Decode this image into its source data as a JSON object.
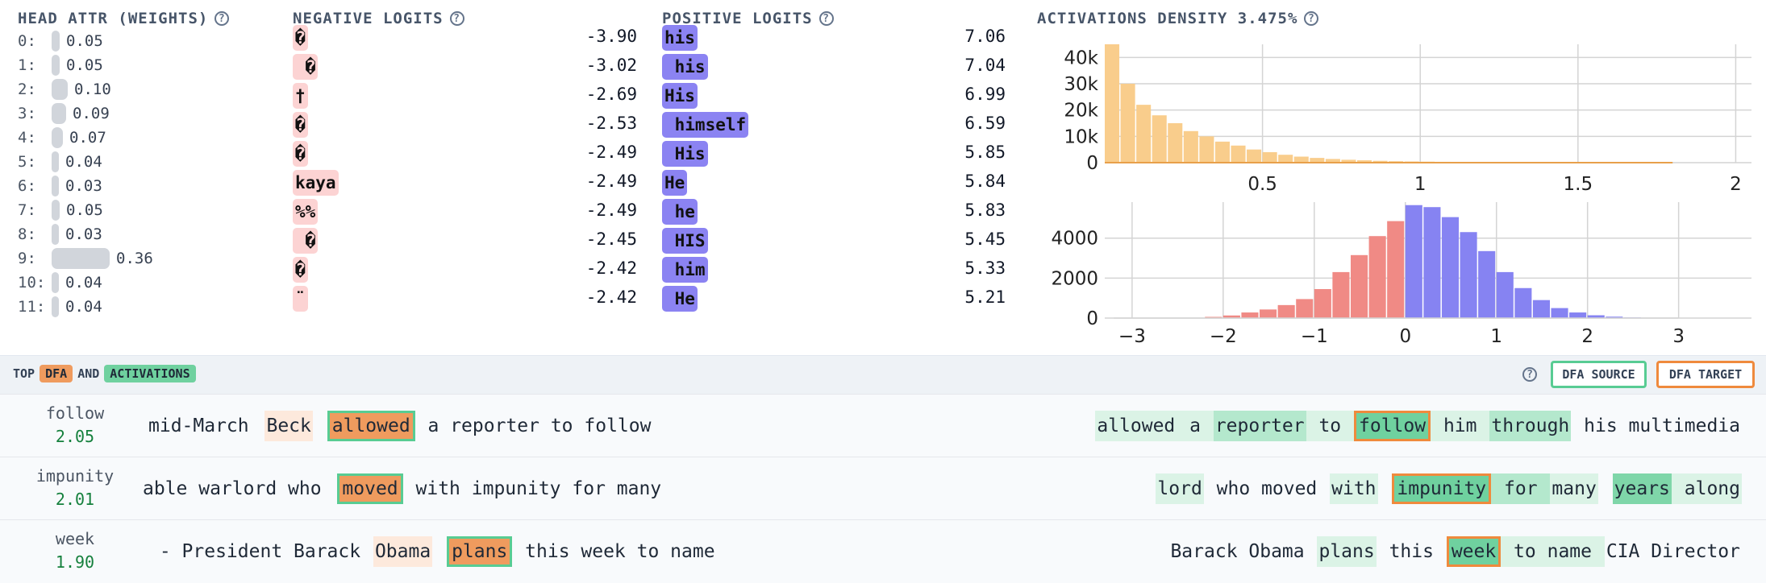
{
  "head_attr": {
    "title": "HEAD ATTR (WEIGHTS)",
    "rows": [
      {
        "label": "0:",
        "value": "0.05",
        "weight": 0.05
      },
      {
        "label": "1:",
        "value": "0.05",
        "weight": 0.05
      },
      {
        "label": "2:",
        "value": "0.10",
        "weight": 0.1
      },
      {
        "label": "3:",
        "value": "0.09",
        "weight": 0.09
      },
      {
        "label": "4:",
        "value": "0.07",
        "weight": 0.07
      },
      {
        "label": "5:",
        "value": "0.04",
        "weight": 0.04
      },
      {
        "label": "6:",
        "value": "0.03",
        "weight": 0.03
      },
      {
        "label": "7:",
        "value": "0.05",
        "weight": 0.05
      },
      {
        "label": "8:",
        "value": "0.03",
        "weight": 0.03
      },
      {
        "label": "9:",
        "value": "0.36",
        "weight": 0.36
      },
      {
        "label": "10:",
        "value": "0.04",
        "weight": 0.04
      },
      {
        "label": "11:",
        "value": "0.04",
        "weight": 0.04
      }
    ]
  },
  "negative_logits": {
    "title": "NEGATIVE LOGITS",
    "rows": [
      {
        "token": "�",
        "value": "-3.90"
      },
      {
        "token": " �",
        "value": "-3.02"
      },
      {
        "token": "†",
        "value": "-2.69"
      },
      {
        "token": "�",
        "value": "-2.53"
      },
      {
        "token": "�",
        "value": "-2.49"
      },
      {
        "token": "kaya",
        "value": "-2.49"
      },
      {
        "token": "%%",
        "value": "-2.49"
      },
      {
        "token": " �",
        "value": "-2.45"
      },
      {
        "token": "�",
        "value": "-2.42"
      },
      {
        "token": "¨",
        "value": "-2.42"
      }
    ]
  },
  "positive_logits": {
    "title": "POSITIVE LOGITS",
    "rows": [
      {
        "token": "his",
        "value": "7.06"
      },
      {
        "token": " his",
        "value": "7.04"
      },
      {
        "token": "His",
        "value": "6.99"
      },
      {
        "token": " himself",
        "value": "6.59"
      },
      {
        "token": " His",
        "value": "5.85"
      },
      {
        "token": "He",
        "value": "5.84"
      },
      {
        "token": " he",
        "value": "5.83"
      },
      {
        "token": " HIS",
        "value": "5.45"
      },
      {
        "token": " him",
        "value": "5.33"
      },
      {
        "token": " He",
        "value": "5.21"
      }
    ]
  },
  "density": {
    "title": "ACTIVATIONS DENSITY 3.475%",
    "color_top": "#f9cd8c",
    "color_neg": "#f08a85",
    "color_pos": "#8683f2"
  },
  "chart_data": [
    {
      "type": "bar",
      "ylabel": "",
      "x_ticks": [
        "0.5",
        "1",
        "1.5",
        "2"
      ],
      "y_ticks": [
        "0",
        "10k",
        "20k",
        "30k",
        "40k"
      ],
      "xlim": [
        0.0,
        2.05
      ],
      "ylim": [
        0,
        45000
      ],
      "bin_start": 0.0,
      "bin_width": 0.05,
      "values": [
        45000,
        30000,
        22000,
        18000,
        15000,
        12000,
        10000,
        8000,
        6500,
        5000,
        4000,
        3000,
        2300,
        1800,
        1400,
        1100,
        900,
        700,
        550,
        450,
        380,
        320,
        270,
        230,
        200,
        170,
        150,
        130,
        110,
        95,
        85,
        75,
        65,
        55,
        45,
        40
      ]
    },
    {
      "type": "bar",
      "x_ticks": [
        "−3",
        "−2",
        "−1",
        "0",
        "1",
        "2",
        "3"
      ],
      "y_ticks": [
        "0",
        "2000",
        "4000"
      ],
      "xlim": [
        -3.3,
        3.8
      ],
      "ylim": [
        0,
        5800
      ],
      "bin_width": 0.2,
      "series": [
        {
          "name": "negative",
          "x": [
            -2.2,
            -2.0,
            -1.8,
            -1.6,
            -1.4,
            -1.2,
            -1.0,
            -0.8,
            -0.6,
            -0.4,
            -0.2
          ],
          "values": [
            60,
            130,
            280,
            430,
            650,
            950,
            1450,
            2300,
            3150,
            4100,
            4850
          ]
        },
        {
          "name": "positive",
          "x": [
            0.0,
            0.2,
            0.4,
            0.6,
            0.8,
            1.0,
            1.2,
            1.4,
            1.6,
            1.8,
            2.0,
            2.2,
            2.4
          ],
          "values": [
            5650,
            5550,
            5050,
            4300,
            3350,
            2300,
            1500,
            900,
            500,
            280,
            140,
            70,
            30
          ]
        }
      ]
    }
  ],
  "dfa_section": {
    "label_top": "TOP",
    "label_dfa": "DFA",
    "label_and": "AND",
    "label_act": "ACTIVATIONS",
    "source_button": "DFA SOURCE",
    "target_button": "DFA TARGET",
    "rows": [
      {
        "word": "follow",
        "value": "2.05",
        "source": [
          {
            "t": "mid-March",
            "s": ""
          },
          {
            "t": " ",
            "s": ""
          },
          {
            "t": "Beck",
            "s": "src-pale"
          },
          {
            "t": " ",
            "s": ""
          },
          {
            "t": "allowed",
            "s": "src-strong"
          },
          {
            "t": " a reporter to follow",
            "s": ""
          }
        ],
        "target": [
          {
            "t": "allowed",
            "s": "g1"
          },
          {
            "t": " a ",
            "s": "g1"
          },
          {
            "t": "reporter",
            "s": "g2"
          },
          {
            "t": " to ",
            "s": "g1"
          },
          {
            "t": "follow",
            "s": "tgt"
          },
          {
            "t": " him ",
            "s": "g1"
          },
          {
            "t": "through",
            "s": "g2"
          },
          {
            "t": " his multimedia",
            "s": ""
          }
        ]
      },
      {
        "word": "impunity",
        "value": "2.01",
        "source": [
          {
            "t": "able warlord who",
            "s": ""
          },
          {
            "t": " ",
            "s": ""
          },
          {
            "t": "moved",
            "s": "src-strong"
          },
          {
            "t": " with impunity for many",
            "s": ""
          }
        ],
        "target": [
          {
            "t": "lord",
            "s": "g1"
          },
          {
            "t": " who moved ",
            "s": ""
          },
          {
            "t": "with",
            "s": "g1"
          },
          {
            "t": " ",
            "s": ""
          },
          {
            "t": "impunity",
            "s": "tgt"
          },
          {
            "t": " for ",
            "s": "g2"
          },
          {
            "t": "many",
            "s": "g1"
          },
          {
            "t": " ",
            "s": ""
          },
          {
            "t": "years",
            "s": "g3"
          },
          {
            "t": " along",
            "s": "g1"
          }
        ]
      },
      {
        "word": "week",
        "value": "1.90",
        "source": [
          {
            "t": " - President Barack ",
            "s": ""
          },
          {
            "t": "Obama",
            "s": "src-pale"
          },
          {
            "t": " ",
            "s": ""
          },
          {
            "t": "plans",
            "s": "src-strong"
          },
          {
            "t": " this week to name",
            "s": ""
          }
        ],
        "target": [
          {
            "t": "Barack Obama ",
            "s": ""
          },
          {
            "t": "plans",
            "s": "g1"
          },
          {
            "t": " this ",
            "s": ""
          },
          {
            "t": "week",
            "s": "tgt"
          },
          {
            "t": " to name ",
            "s": "g1"
          },
          {
            "t": "CIA Director",
            "s": ""
          }
        ]
      }
    ]
  }
}
